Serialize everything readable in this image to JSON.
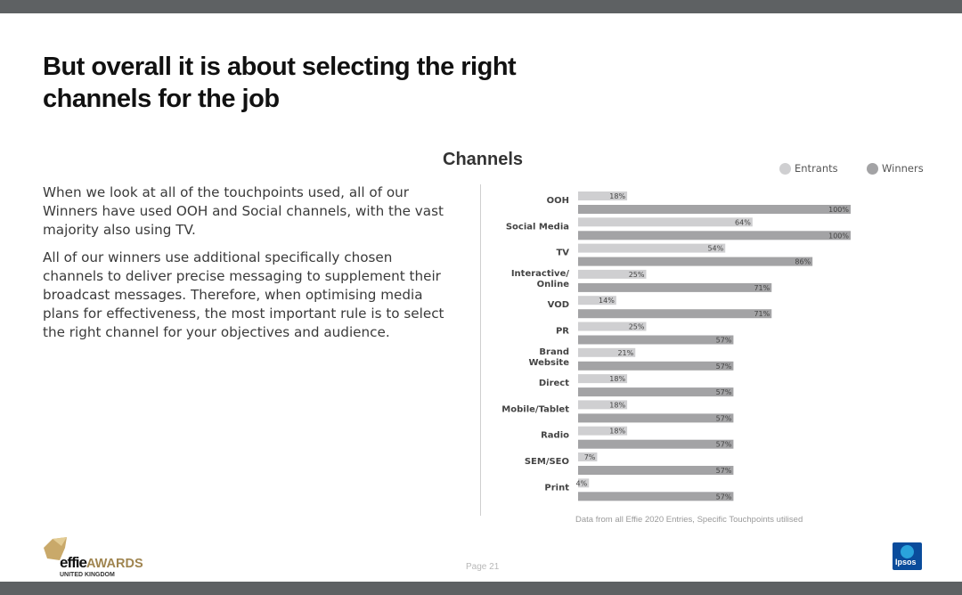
{
  "slide": {
    "title": "But overall it is about selecting the right channels for the job",
    "paragraphs": [
      "When we look at all of the touchpoints used, all of our Winners have used OOH and Social channels, with the vast majority also using TV.",
      "All of our winners use additional specifically chosen channels to deliver precise messaging to supplement their broadcast messages. Therefore, when optimising media plans for effectiveness,  the most important rule is to select the right channel for your objectives and audience."
    ],
    "footnote": "Data from all Effie 2020 Entries, Specific Touchpoints utilised",
    "page_label": "Page 21",
    "logos": {
      "effie_word": "effie",
      "effie_awards": "AWARDS",
      "effie_sub": "UNITED KINGDOM",
      "ipsos": "Ipsos"
    }
  },
  "colors": {
    "bars_bg": "#5e6163",
    "entrants": "#cfcfd1",
    "winners": "#a3a3a5",
    "effie_gold": "#a08550",
    "ipsos_blue": "#0a4c9c"
  },
  "chart_data": {
    "type": "bar",
    "orientation": "horizontal",
    "title": "Channels",
    "categories": [
      "OOH",
      "Social  Media",
      "TV",
      "Interactive/\nOnline",
      "VOD",
      "PR",
      "Brand\nWebsite",
      "Direct",
      "Mobile/Tablet",
      "Radio",
      "SEM/SEO",
      "Print"
    ],
    "series": [
      {
        "name": "Entrants",
        "values": [
          18,
          64,
          54,
          25,
          14,
          25,
          21,
          18,
          18,
          18,
          7,
          4
        ]
      },
      {
        "name": "Winners",
        "values": [
          100,
          100,
          86,
          71,
          71,
          57,
          57,
          57,
          57,
          57,
          57,
          57
        ]
      }
    ],
    "value_suffix": "%",
    "xlim": [
      0,
      100
    ],
    "grid": false,
    "legend": "top-right"
  }
}
